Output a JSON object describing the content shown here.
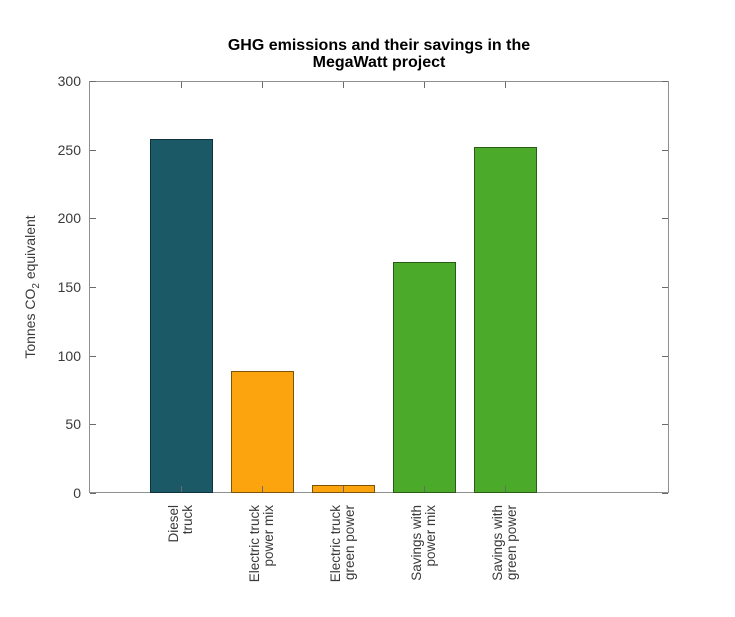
{
  "chart_data": {
    "type": "bar",
    "title": "GHG emissions and their savings in the MegaWatt project",
    "title_lines": [
      "GHG emissions and their savings in the",
      "MegaWatt project"
    ],
    "ylabel": {
      "prefix": "Tonnes CO",
      "sub": "2",
      "suffix": " equivalent"
    },
    "categories": [
      "Diesel truck",
      "Electric truck power mix",
      "Electric truck green power",
      "Savings with power mix",
      "Savings with green power"
    ],
    "category_lines": [
      [
        "Diesel",
        "truck"
      ],
      [
        "Electric truck",
        "power mix"
      ],
      [
        "Electric truck",
        "green power"
      ],
      [
        "Savings with",
        "power mix"
      ],
      [
        "Savings with",
        "green power"
      ]
    ],
    "values": [
      258,
      89,
      6,
      168,
      252
    ],
    "bar_colors": [
      "#1c5967",
      "#fca40d",
      "#fca40d",
      "#4caa2a",
      "#4caa2a"
    ],
    "bar_edge_colors": [
      "#0f323c",
      "#7d5407",
      "#7d5407",
      "#295c15",
      "#295c15"
    ],
    "yticks": [
      0,
      50,
      100,
      150,
      200,
      250,
      300
    ],
    "ylim": [
      0,
      300
    ],
    "grid": false,
    "legend_position": "none",
    "tick_direction": "in"
  },
  "colors": {
    "background": "#ffffff",
    "axis_frame": "#909090",
    "tick_mark": "#6a6a6a",
    "tick_label": "#3a3a3a",
    "title": "#000000"
  }
}
